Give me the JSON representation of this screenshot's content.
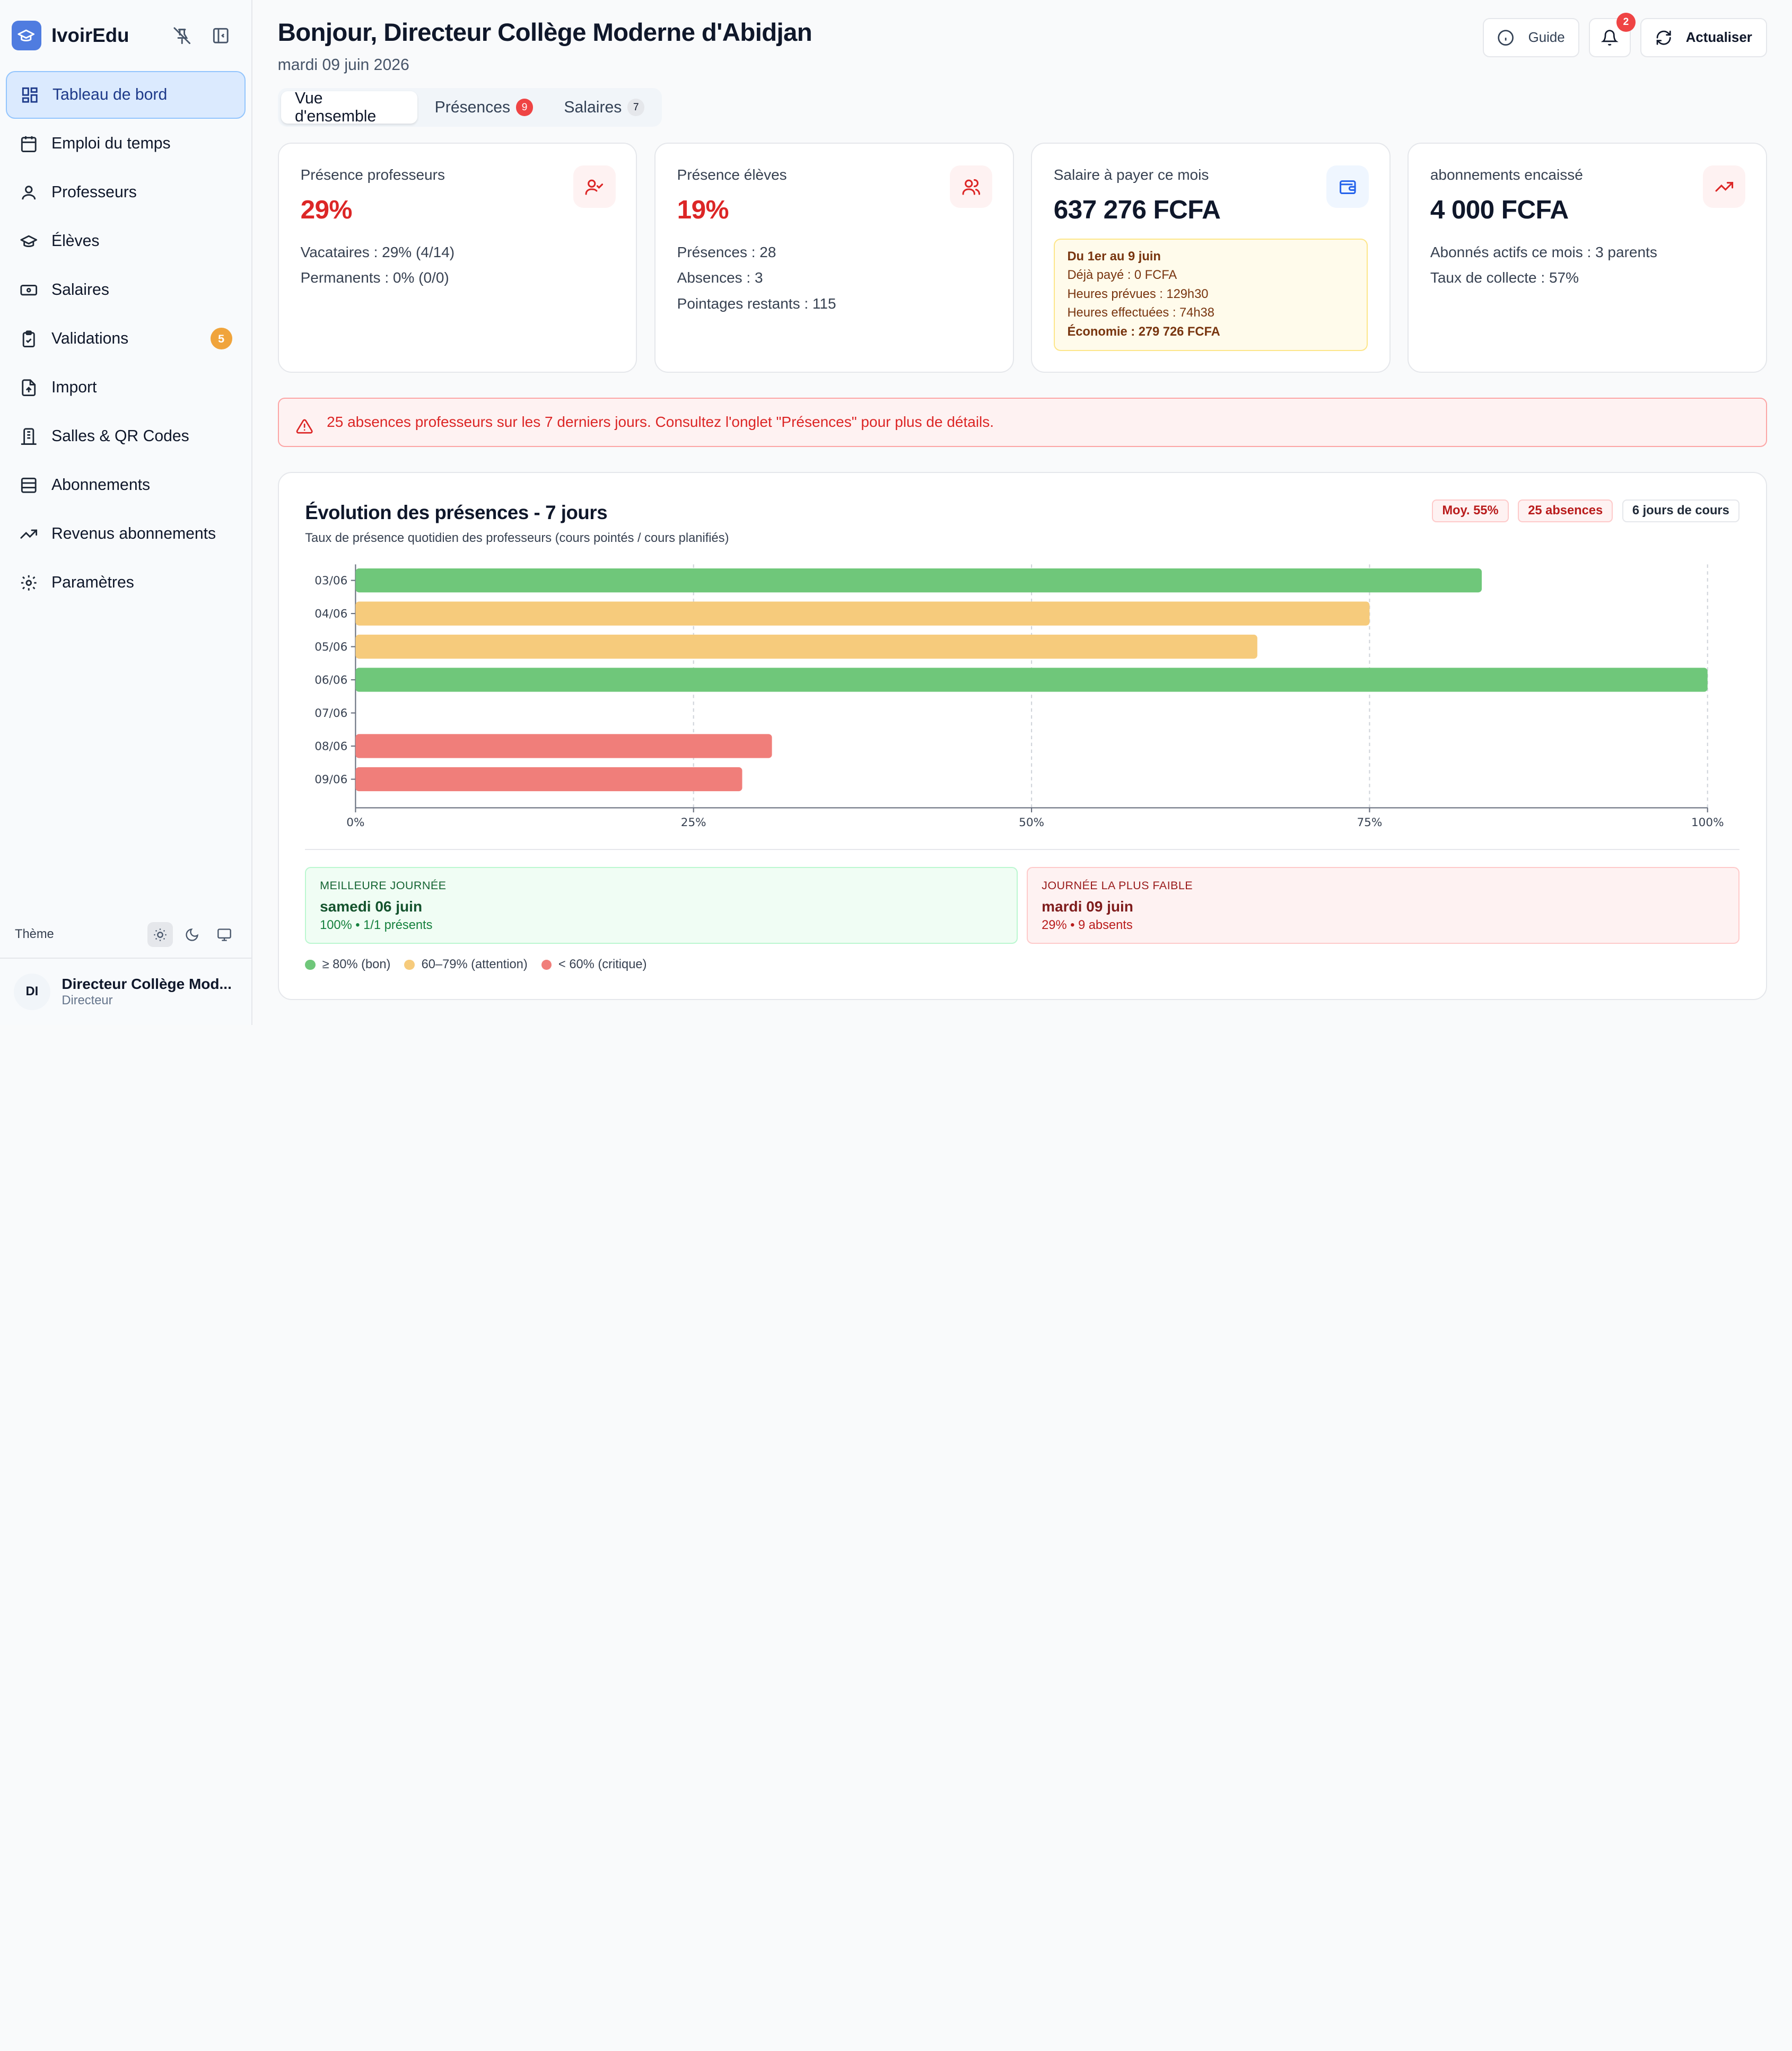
{
  "app": {
    "name": "IvoirEdu"
  },
  "sidebar": {
    "items": [
      {
        "label": "Tableau de bord",
        "icon": "dashboard-icon",
        "active": true
      },
      {
        "label": "Emploi du temps",
        "icon": "calendar-icon"
      },
      {
        "label": "Professeurs",
        "icon": "user-icon"
      },
      {
        "label": "Élèves",
        "icon": "graduation-cap-icon"
      },
      {
        "label": "Salaires",
        "icon": "banknote-icon"
      },
      {
        "label": "Validations",
        "icon": "clipboard-check-icon",
        "badge": "5"
      },
      {
        "label": "Import",
        "icon": "file-import-icon"
      },
      {
        "label": "Salles & QR Codes",
        "icon": "building-icon"
      },
      {
        "label": "Abonnements",
        "icon": "archive-icon"
      },
      {
        "label": "Revenus abonnements",
        "icon": "trending-up-icon"
      },
      {
        "label": "Paramètres",
        "icon": "settings-icon"
      }
    ],
    "theme_label": "Thème",
    "user": {
      "initials": "DI",
      "name": "Directeur Collège Mod...",
      "role": "Directeur"
    }
  },
  "header": {
    "greeting": "Bonjour, Directeur Collège Moderne d'Abidjan",
    "date": "mardi 09 juin 2026",
    "tabs": [
      {
        "label": "Vue d'ensemble",
        "active": true
      },
      {
        "label": "Présences",
        "badge": "9"
      },
      {
        "label": "Salaires",
        "badge": "7"
      }
    ],
    "guide_label": "Guide",
    "notif_count": "2",
    "refresh_label": "Actualiser"
  },
  "cards": {
    "teachers": {
      "label": "Présence professeurs",
      "value": "29%",
      "line1": "Vacataires : 29% (4/14)",
      "line2": "Permanents : 0% (0/0)"
    },
    "students": {
      "label": "Présence élèves",
      "value": "19%",
      "line1": "Présences : 28",
      "line2": "Absences : 3",
      "line3": "Pointages restants : 115"
    },
    "salary": {
      "label": "Salaire à payer ce mois",
      "value": "637 276 FCFA",
      "box_title": "Du 1er au 9 juin",
      "box_paid": "Déjà payé : 0 FCFA",
      "box_planned": "Heures prévues : 129h30",
      "box_done": "Heures effectuées : 74h38",
      "box_saving": "Économie : 279 726 FCFA"
    },
    "subscriptions": {
      "label": "abonnements encaissé",
      "value": "4 000 FCFA",
      "line1": "Abonnés actifs ce mois : 3 parents",
      "line2": "Taux de collecte : 57%"
    }
  },
  "alert": {
    "text": "25 absences professeurs sur les 7 derniers jours. Consultez l'onglet \"Présences\" pour plus de détails."
  },
  "panel": {
    "title": "Évolution des présences - 7 jours",
    "subtitle": "Taux de présence quotidien des professeurs (cours pointés / cours planifiés)",
    "pill_avg": "Moy. 55%",
    "pill_absences": "25 absences",
    "pill_days": "6 jours de cours",
    "best_label": "MEILLEURE JOURNÉE",
    "best_day": "samedi 06 juin",
    "best_detail": "100% • 1/1 présents",
    "worst_label": "JOURNÉE LA PLUS FAIBLE",
    "worst_day": "mardi 09 juin",
    "worst_detail": "29% • 9 absents",
    "legend": {
      "good": "≥ 80% (bon)",
      "warn": "60–79% (attention)",
      "crit": "< 60% (critique)"
    },
    "colors": {
      "good": "#6fc77a",
      "warn": "#f6cb7c",
      "crit": "#f07e7a"
    }
  },
  "chart_data": {
    "type": "bar",
    "orientation": "horizontal",
    "categories": [
      "03/06",
      "04/06",
      "05/06",
      "06/06",
      "07/06",
      "08/06",
      "09/06"
    ],
    "values": [
      83.3,
      75,
      66.7,
      100,
      0,
      30.8,
      28.6
    ],
    "xlim": [
      0,
      100
    ],
    "xticks": [
      "0%",
      "25%",
      "50%",
      "75%",
      "100%"
    ],
    "grid": "vertical-dashed"
  }
}
